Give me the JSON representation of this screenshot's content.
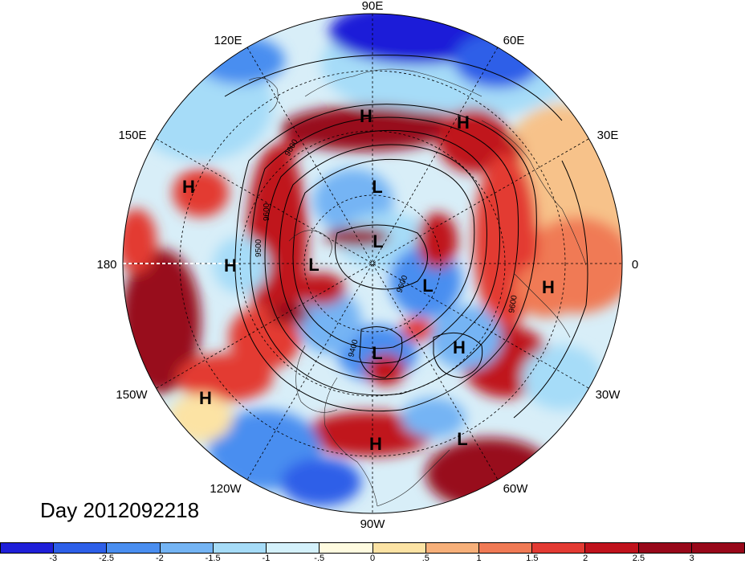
{
  "title": "Day 2012092218",
  "longitude_labels": [
    "90E",
    "60E",
    "30E",
    "0",
    "30W",
    "60W",
    "90W",
    "120W",
    "150W",
    "180",
    "150E",
    "120E"
  ],
  "pressure_systems": [
    {
      "type": "H",
      "label": "H"
    },
    {
      "type": "H",
      "label": "H"
    },
    {
      "type": "H",
      "label": "H"
    },
    {
      "type": "H",
      "label": "H"
    },
    {
      "type": "L",
      "label": "L"
    },
    {
      "type": "L",
      "label": "L"
    },
    {
      "type": "L",
      "label": "L"
    },
    {
      "type": "L",
      "label": "L"
    },
    {
      "type": "H",
      "label": "H"
    },
    {
      "type": "L",
      "label": "L"
    },
    {
      "type": "H",
      "label": "H"
    },
    {
      "type": "H",
      "label": "H"
    },
    {
      "type": "H",
      "label": "H"
    },
    {
      "type": "L",
      "label": "L"
    }
  ],
  "contour_labels": [
    "9600",
    "9500",
    "9600",
    "9600",
    "9400",
    "9600"
  ],
  "colorbar": {
    "colors": [
      "#1f1fd8",
      "#2d5fe8",
      "#4a8ef0",
      "#74b4f4",
      "#a6dcf8",
      "#d4f1fb",
      "#fffbe0",
      "#fce3a4",
      "#f7b07a",
      "#f07a55",
      "#e33a33",
      "#c0121c",
      "#98081a"
    ],
    "tick_labels": [
      "-3",
      "-2.5",
      "-2",
      "-1.5",
      "-1",
      "-.5",
      "0",
      ".5",
      "1",
      "1.5",
      "2",
      "2.5",
      "3"
    ]
  }
}
